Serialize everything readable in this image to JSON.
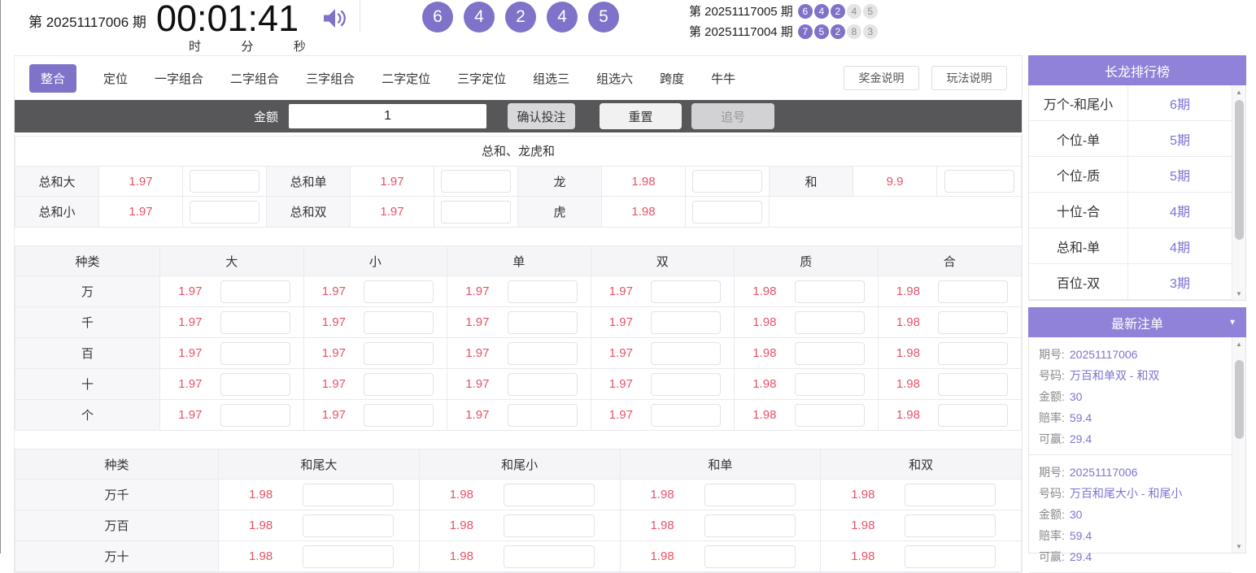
{
  "colors": {
    "purple": "#7e72c9",
    "panel_purple": "#8f82d8",
    "odds_pink": "#e85368",
    "value_purple": "#7c74d2",
    "dark_bar": "#57575a"
  },
  "icons": {
    "scroll_up": "▲",
    "scroll_down": "▼",
    "collapse": "▼"
  },
  "header": {
    "current_issue_label": "第 20251117006 期",
    "timer": {
      "value": "00:01:41",
      "hour_label": "时",
      "minute_label": "分",
      "second_label": "秒"
    },
    "current_balls": [
      "6",
      "4",
      "2",
      "4",
      "5"
    ],
    "history": [
      {
        "label": "第 20251117005 期",
        "balls": [
          {
            "n": "6",
            "hl": true
          },
          {
            "n": "4",
            "hl": true
          },
          {
            "n": "2",
            "hl": true
          },
          {
            "n": "4",
            "hl": false
          },
          {
            "n": "5",
            "hl": false
          }
        ]
      },
      {
        "label": "第 20251117004 期",
        "balls": [
          {
            "n": "7",
            "hl": true
          },
          {
            "n": "5",
            "hl": true
          },
          {
            "n": "2",
            "hl": true
          },
          {
            "n": "8",
            "hl": false
          },
          {
            "n": "3",
            "hl": false
          }
        ]
      }
    ]
  },
  "tabs": [
    {
      "label": "整合",
      "active": true
    },
    {
      "label": "定位",
      "active": false
    },
    {
      "label": "一字组合",
      "active": false
    },
    {
      "label": "二字组合",
      "active": false
    },
    {
      "label": "三字组合",
      "active": false
    },
    {
      "label": "二字定位",
      "active": false
    },
    {
      "label": "三字定位",
      "active": false
    },
    {
      "label": "组选三",
      "active": false
    },
    {
      "label": "组选六",
      "active": false
    },
    {
      "label": "跨度",
      "active": false
    },
    {
      "label": "牛牛",
      "active": false
    }
  ],
  "help_buttons": {
    "prize": "奖金说明",
    "rules": "玩法说明"
  },
  "bet_bar": {
    "amount_label": "金额",
    "amount_value": "1",
    "confirm": "确认投注",
    "reset": "重置",
    "chase": "追号"
  },
  "sum_section": {
    "title": "总和、龙虎和",
    "rows": [
      [
        {
          "label": "总和大",
          "odds": "1.97"
        },
        {
          "label": "总和单",
          "odds": "1.97"
        },
        {
          "label": "龙",
          "odds": "1.98"
        },
        {
          "label": "和",
          "odds": "9.9"
        }
      ],
      [
        {
          "label": "总和小",
          "odds": "1.97"
        },
        {
          "label": "总和双",
          "odds": "1.97"
        },
        {
          "label": "虎",
          "odds": "1.98"
        }
      ]
    ]
  },
  "position_table": {
    "headers": [
      "种类",
      "大",
      "小",
      "单",
      "双",
      "质",
      "合"
    ],
    "rows": [
      {
        "label": "万",
        "odds": [
          "1.97",
          "1.97",
          "1.97",
          "1.97",
          "1.98",
          "1.98"
        ]
      },
      {
        "label": "千",
        "odds": [
          "1.97",
          "1.97",
          "1.97",
          "1.97",
          "1.98",
          "1.98"
        ]
      },
      {
        "label": "百",
        "odds": [
          "1.97",
          "1.97",
          "1.97",
          "1.97",
          "1.98",
          "1.98"
        ]
      },
      {
        "label": "十",
        "odds": [
          "1.97",
          "1.97",
          "1.97",
          "1.97",
          "1.98",
          "1.98"
        ]
      },
      {
        "label": "个",
        "odds": [
          "1.97",
          "1.97",
          "1.97",
          "1.97",
          "1.98",
          "1.98"
        ]
      }
    ]
  },
  "combo_table": {
    "headers": [
      "种类",
      "和尾大",
      "和尾小",
      "和单",
      "和双"
    ],
    "rows": [
      {
        "label": "万千",
        "odds": [
          "1.98",
          "1.98",
          "1.98",
          "1.98"
        ]
      },
      {
        "label": "万百",
        "odds": [
          "1.98",
          "1.98",
          "1.98",
          "1.98"
        ]
      },
      {
        "label": "万十",
        "odds": [
          "1.98",
          "1.98",
          "1.98",
          "1.98"
        ]
      }
    ]
  },
  "streak_panel": {
    "title": "长龙排行榜",
    "items": [
      {
        "name": "万个-和尾小",
        "count": "6期"
      },
      {
        "name": "个位-单",
        "count": "5期"
      },
      {
        "name": "个位-质",
        "count": "5期"
      },
      {
        "name": "十位-合",
        "count": "4期"
      },
      {
        "name": "总和-单",
        "count": "4期"
      },
      {
        "name": "百位-双",
        "count": "3期"
      }
    ]
  },
  "orders_panel": {
    "title": "最新注单",
    "labels": {
      "issue": "期号:",
      "number": "号码:",
      "amount": "金额:",
      "odds": "赔率:",
      "win": "可赢:"
    },
    "orders": [
      {
        "issue": "20251117006",
        "number": "万百和单双 - 和双",
        "amount": "30",
        "odds": "59.4",
        "win": "29.4"
      },
      {
        "issue": "20251117006",
        "number": "万百和尾大小 - 和尾小",
        "amount": "30",
        "odds": "59.4",
        "win": "29.4"
      }
    ]
  }
}
